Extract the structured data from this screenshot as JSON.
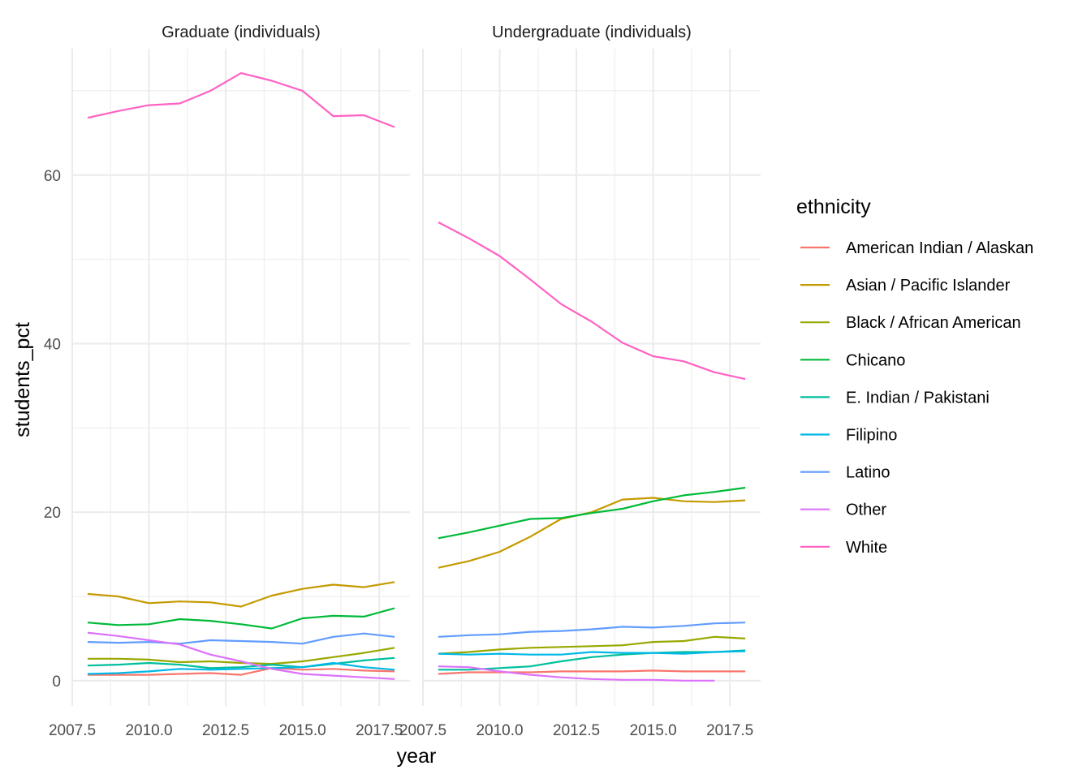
{
  "chart_data": {
    "type": "line",
    "xlabel": "year",
    "ylabel": "students_pct",
    "xlim": [
      2007.5,
      2018.5
    ],
    "ylim": [
      -3,
      75
    ],
    "x_ticks": [
      2007.5,
      2010.0,
      2012.5,
      2015.0,
      2017.5
    ],
    "x_tick_labels": [
      "2007.5",
      "2010.0",
      "2012.5",
      "2015.0",
      "2017.5"
    ],
    "y_ticks": [
      0,
      20,
      40,
      60
    ],
    "y_tick_labels": [
      "0",
      "20",
      "40",
      "60"
    ],
    "grid": true,
    "legend": {
      "title": "ethnicity",
      "position": "right",
      "entries": [
        {
          "name": "American Indian / Alaskan",
          "color": "#F8766D"
        },
        {
          "name": "Asian / Pacific Islander",
          "color": "#C49A00"
        },
        {
          "name": "Black / African American",
          "color": "#99A800"
        },
        {
          "name": "Chicano",
          "color": "#00BA38"
        },
        {
          "name": "E. Indian / Pakistani",
          "color": "#00BF9C"
        },
        {
          "name": "Filipino",
          "color": "#00B8E7"
        },
        {
          "name": "Latino",
          "color": "#619CFF"
        },
        {
          "name": "Other",
          "color": "#DB72FB"
        },
        {
          "name": "White",
          "color": "#FF61C3"
        }
      ]
    },
    "x": [
      2008,
      2009,
      2010,
      2011,
      2012,
      2013,
      2014,
      2015,
      2016,
      2017,
      2018
    ],
    "panels": [
      {
        "title": "Graduate (individuals)",
        "series": [
          {
            "name": "American Indian / Alaskan",
            "values": [
              0.7,
              0.7,
              0.7,
              0.8,
              0.9,
              0.7,
              1.5,
              1.3,
              1.4,
              1.2,
              1.1
            ]
          },
          {
            "name": "Asian / Pacific Islander",
            "values": [
              10.3,
              10.0,
              9.2,
              9.4,
              9.3,
              8.8,
              10.1,
              10.9,
              11.4,
              11.1,
              11.7
            ]
          },
          {
            "name": "Black / African American",
            "values": [
              2.6,
              2.6,
              2.5,
              2.2,
              2.3,
              2.1,
              2.0,
              2.3,
              2.8,
              3.3,
              3.9
            ]
          },
          {
            "name": "Chicano",
            "values": [
              6.9,
              6.6,
              6.7,
              7.3,
              7.1,
              6.7,
              6.2,
              7.4,
              7.7,
              7.6,
              8.6
            ]
          },
          {
            "name": "E. Indian / Pakistani",
            "values": [
              1.8,
              1.9,
              2.1,
              1.9,
              1.5,
              1.6,
              1.9,
              1.6,
              2.0,
              2.4,
              2.7
            ]
          },
          {
            "name": "Filipino",
            "values": [
              0.8,
              0.9,
              1.1,
              1.4,
              1.3,
              1.4,
              1.5,
              1.6,
              2.1,
              1.6,
              1.3
            ]
          },
          {
            "name": "Latino",
            "values": [
              4.6,
              4.5,
              4.6,
              4.4,
              4.8,
              4.7,
              4.6,
              4.4,
              5.2,
              5.6,
              5.2
            ]
          },
          {
            "name": "Other",
            "values": [
              5.7,
              5.3,
              4.8,
              4.3,
              3.1,
              2.3,
              1.4,
              0.8,
              0.6,
              0.4,
              0.2
            ]
          },
          {
            "name": "White",
            "values": [
              66.8,
              67.6,
              68.3,
              68.5,
              70.0,
              72.1,
              71.2,
              70.0,
              67.0,
              67.1,
              65.7
            ]
          }
        ]
      },
      {
        "title": "Undergraduate (individuals)",
        "series": [
          {
            "name": "American Indian / Alaskan",
            "values": [
              0.8,
              1.0,
              1.0,
              1.0,
              1.1,
              1.1,
              1.1,
              1.2,
              1.1,
              1.1,
              1.1
            ]
          },
          {
            "name": "Asian / Pacific Islander",
            "values": [
              13.4,
              14.2,
              15.3,
              17.1,
              19.2,
              20.0,
              21.5,
              21.7,
              21.3,
              21.2,
              21.4
            ]
          },
          {
            "name": "Black / African American",
            "values": [
              3.2,
              3.4,
              3.7,
              3.9,
              4.0,
              4.1,
              4.2,
              4.6,
              4.7,
              5.2,
              5.0
            ]
          },
          {
            "name": "Chicano",
            "values": [
              16.9,
              17.6,
              18.4,
              19.2,
              19.3,
              19.9,
              20.4,
              21.3,
              22.0,
              22.4,
              22.9
            ]
          },
          {
            "name": "E. Indian / Pakistani",
            "values": [
              1.3,
              1.3,
              1.5,
              1.7,
              2.3,
              2.8,
              3.1,
              3.3,
              3.4,
              3.4,
              3.6
            ]
          },
          {
            "name": "Filipino",
            "values": [
              3.2,
              3.1,
              3.2,
              3.1,
              3.1,
              3.4,
              3.3,
              3.3,
              3.2,
              3.4,
              3.5
            ]
          },
          {
            "name": "Latino",
            "values": [
              5.2,
              5.4,
              5.5,
              5.8,
              5.9,
              6.1,
              6.4,
              6.3,
              6.5,
              6.8,
              6.9
            ]
          },
          {
            "name": "Other",
            "values": [
              1.7,
              1.6,
              1.1,
              0.7,
              0.4,
              0.2,
              0.1,
              0.1,
              0.0,
              0.0,
              null
            ]
          },
          {
            "name": "White",
            "values": [
              54.4,
              52.5,
              50.4,
              47.6,
              44.7,
              42.6,
              40.1,
              38.5,
              37.9,
              36.6,
              35.8
            ]
          }
        ]
      }
    ]
  }
}
